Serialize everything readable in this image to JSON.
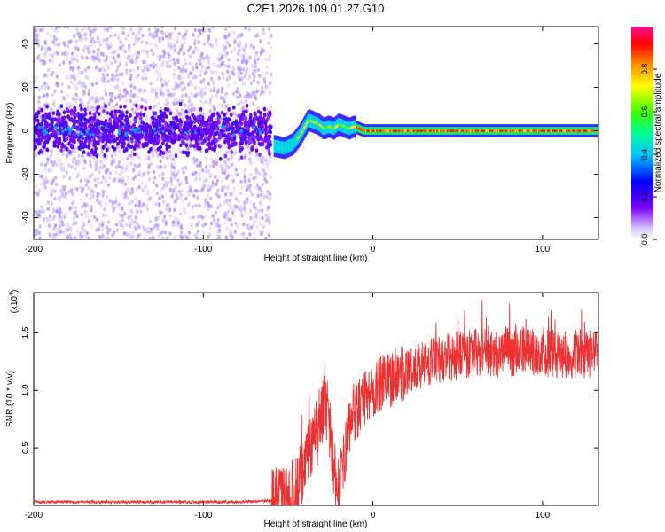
{
  "title": "C2E1.2026.109.01.27.G10",
  "chart_data": [
    {
      "type": "heatmap",
      "xlabel": "Height of straight line (km)",
      "ylabel": "Frequency (Hz)",
      "xlim": [
        -200,
        133
      ],
      "ylim": [
        -50,
        48
      ],
      "xticks": [
        -200,
        -100,
        0,
        100
      ],
      "yticks": [
        -40,
        -20,
        0,
        20,
        40
      ],
      "colorbar": {
        "label": "Normalized spectral amplitude",
        "range": [
          0,
          1
        ],
        "ticks": [
          "0.0",
          "0.2",
          "0.4",
          "0.6",
          "0.8"
        ]
      },
      "noise_region": {
        "x_from": -200,
        "x_to": -60,
        "core_band_hz": [
          -10,
          10
        ]
      },
      "trace": {
        "x": [
          -58,
          -52,
          -47,
          -43,
          -40,
          -38,
          -35,
          -32,
          -29,
          -26,
          -23,
          -20,
          -17,
          -14,
          -11,
          -8,
          -5,
          -2,
          0,
          20,
          40,
          60,
          80,
          100,
          120,
          133
        ],
        "y": [
          -7,
          -8,
          -6,
          -2,
          2,
          5,
          4,
          3,
          1,
          2,
          1,
          3,
          2,
          1,
          2,
          1,
          0,
          0,
          0,
          0,
          0,
          0,
          0,
          0,
          0,
          0
        ]
      }
    },
    {
      "type": "line",
      "xlabel": "Height of straight line (km)",
      "ylabel": "SNR (10 * v/v)",
      "yscale_note": "(x10",
      "yscale_exp": "4",
      "xlim": [
        -200,
        133
      ],
      "ylim": [
        0,
        1.85
      ],
      "xticks": [
        -200,
        -100,
        0,
        100
      ],
      "yticks": [
        "0.5",
        "1.0",
        "1.5"
      ],
      "color": "#ef3030",
      "series": [
        {
          "x": [
            -200,
            -160,
            -120,
            -80,
            -60,
            -50,
            -45,
            -40,
            -36,
            -32,
            -29,
            -26,
            -23,
            -21,
            -18,
            -15,
            -12,
            -8,
            -4,
            0,
            5,
            10,
            20,
            30,
            40,
            50,
            60,
            70,
            80,
            90,
            100,
            110,
            120,
            133
          ],
          "y": [
            0.03,
            0.03,
            0.03,
            0.03,
            0.04,
            0.06,
            0.15,
            0.35,
            0.55,
            0.62,
            0.9,
            0.75,
            0.35,
            0.08,
            0.3,
            0.6,
            0.8,
            0.85,
            0.95,
            1.0,
            1.05,
            1.1,
            1.18,
            1.22,
            1.28,
            1.3,
            1.33,
            1.32,
            1.33,
            1.34,
            1.34,
            1.3,
            1.32,
            1.3
          ]
        }
      ]
    }
  ]
}
